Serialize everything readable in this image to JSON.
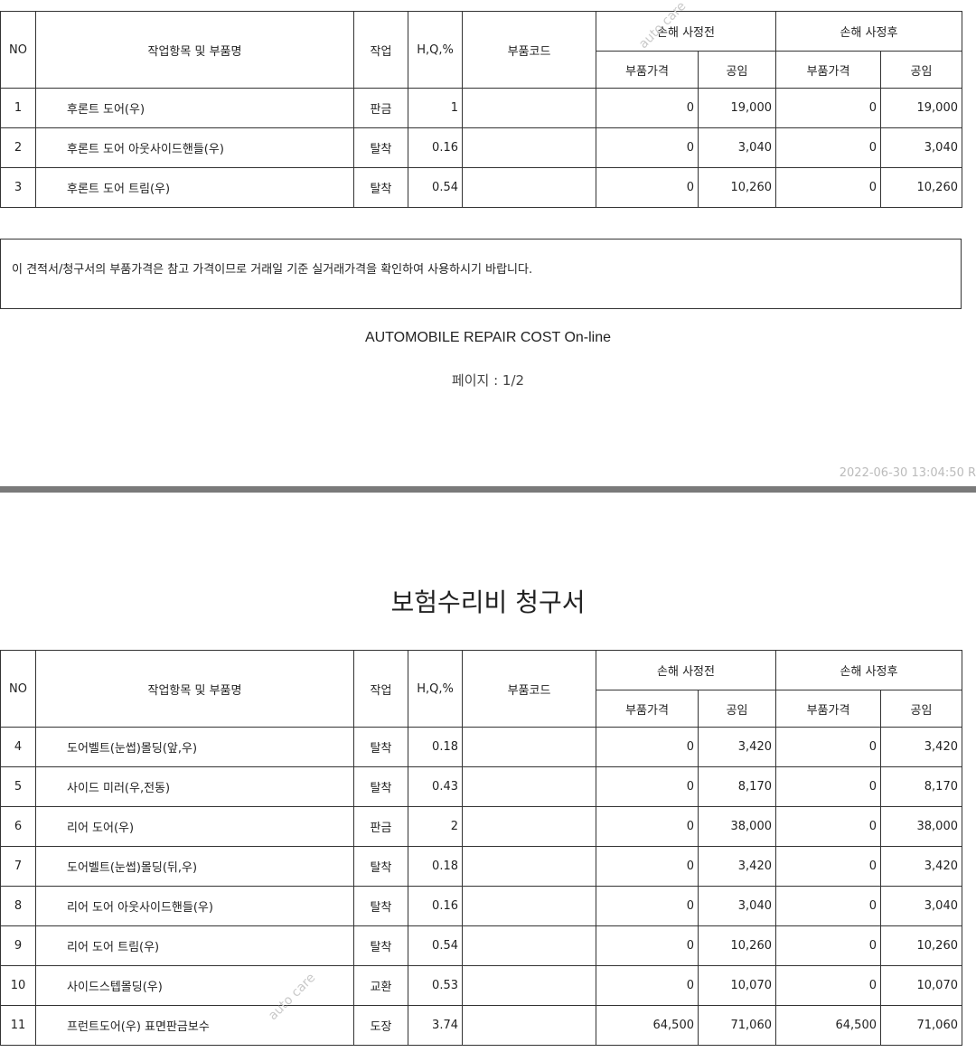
{
  "table1": {
    "headers": {
      "no": "NO",
      "item": "작업항목 및 부품명",
      "work": "작업",
      "hq": "H,Q,%",
      "code": "부품코드",
      "before": "손해 사정전",
      "after": "손해 사정후",
      "part_price": "부품가격",
      "labor": "공임"
    },
    "rows": [
      {
        "no": "1",
        "item": "후론트 도어(우)",
        "work": "판금",
        "hq": "1",
        "code": "",
        "before_part": "0",
        "before_labor": "19,000",
        "after_part": "0",
        "after_labor": "19,000"
      },
      {
        "no": "2",
        "item": "후론트 도어 아웃사이드핸들(우)",
        "work": "탈착",
        "hq": "0.16",
        "code": "",
        "before_part": "0",
        "before_labor": "3,040",
        "after_part": "0",
        "after_labor": "3,040"
      },
      {
        "no": "3",
        "item": "후론트 도어 트림(우)",
        "work": "탈착",
        "hq": "0.54",
        "code": "",
        "before_part": "0",
        "before_labor": "10,260",
        "after_part": "0",
        "after_labor": "10,260"
      }
    ]
  },
  "notice": "이 견적서/청구서의 부품가격은 참고 가격이므로 거래일 기준 실거래가격을 확인하여 사용하시기 바랍니다.",
  "footer_title": "AUTOMOBILE REPAIR COST On-line",
  "page_label": "페이지 : 1/2",
  "timestamp": "2022-06-30  13:04:50 R",
  "doc_title": "보험수리비 청구서",
  "table2": {
    "rows": [
      {
        "no": "4",
        "item": "도어벨트(눈썹)몰딩(앞,우)",
        "work": "탈착",
        "hq": "0.18",
        "code": "",
        "before_part": "0",
        "before_labor": "3,420",
        "after_part": "0",
        "after_labor": "3,420"
      },
      {
        "no": "5",
        "item": "사이드 미러(우,전동)",
        "work": "탈착",
        "hq": "0.43",
        "code": "",
        "before_part": "0",
        "before_labor": "8,170",
        "after_part": "0",
        "after_labor": "8,170"
      },
      {
        "no": "6",
        "item": "리어 도어(우)",
        "work": "판금",
        "hq": "2",
        "code": "",
        "before_part": "0",
        "before_labor": "38,000",
        "after_part": "0",
        "after_labor": "38,000"
      },
      {
        "no": "7",
        "item": "도어벨트(눈썹)몰딩(뒤,우)",
        "work": "탈착",
        "hq": "0.18",
        "code": "",
        "before_part": "0",
        "before_labor": "3,420",
        "after_part": "0",
        "after_labor": "3,420"
      },
      {
        "no": "8",
        "item": "리어 도어 아웃사이드핸들(우)",
        "work": "탈착",
        "hq": "0.16",
        "code": "",
        "before_part": "0",
        "before_labor": "3,040",
        "after_part": "0",
        "after_labor": "3,040"
      },
      {
        "no": "9",
        "item": "리어 도어 트림(우)",
        "work": "탈착",
        "hq": "0.54",
        "code": "",
        "before_part": "0",
        "before_labor": "10,260",
        "after_part": "0",
        "after_labor": "10,260"
      },
      {
        "no": "10",
        "item": "사이드스텝몰딩(우)",
        "work": "교환",
        "hq": "0.53",
        "code": "",
        "before_part": "0",
        "before_labor": "10,070",
        "after_part": "0",
        "after_labor": "10,070"
      },
      {
        "no": "11",
        "item": "프런트도어(우) 표면판금보수",
        "work": "도장",
        "hq": "3.74",
        "code": "",
        "before_part": "64,500",
        "before_labor": "71,060",
        "after_part": "64,500",
        "after_labor": "71,060"
      }
    ]
  },
  "watermark": "auto care"
}
